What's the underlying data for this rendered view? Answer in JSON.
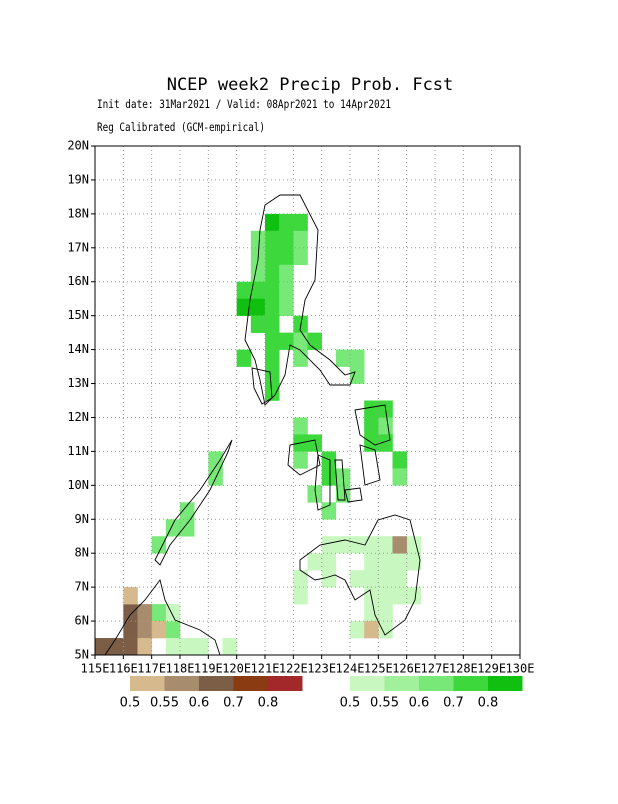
{
  "chart_data": {
    "type": "map",
    "title": "NCEP week2 Precip Prob. Fcst",
    "subtitle_lines": [
      "Init date: 31Mar2021 / Valid: 08Apr2021 to 14Apr2021",
      "Reg Calibrated (GCM-empirical)"
    ],
    "xlim": [
      115,
      130
    ],
    "ylim": [
      5,
      20
    ],
    "xticks": [
      {
        "value": 115,
        "label": "115E"
      },
      {
        "value": 116,
        "label": "116E"
      },
      {
        "value": 117,
        "label": "117E"
      },
      {
        "value": 118,
        "label": "118E"
      },
      {
        "value": 119,
        "label": "119E"
      },
      {
        "value": 120,
        "label": "120E"
      },
      {
        "value": 121,
        "label": "121E"
      },
      {
        "value": 122,
        "label": "122E"
      },
      {
        "value": 123,
        "label": "123E"
      },
      {
        "value": 124,
        "label": "124E"
      },
      {
        "value": 125,
        "label": "125E"
      },
      {
        "value": 126,
        "label": "126E"
      },
      {
        "value": 127,
        "label": "127E"
      },
      {
        "value": 128,
        "label": "128E"
      },
      {
        "value": 129,
        "label": "129E"
      },
      {
        "value": 130,
        "label": "130E"
      }
    ],
    "yticks": [
      {
        "value": 5,
        "label": "5N"
      },
      {
        "value": 6,
        "label": "6N"
      },
      {
        "value": 7,
        "label": "7N"
      },
      {
        "value": 8,
        "label": "8N"
      },
      {
        "value": 9,
        "label": "9N"
      },
      {
        "value": 10,
        "label": "10N"
      },
      {
        "value": 11,
        "label": "11N"
      },
      {
        "value": 12,
        "label": "12N"
      },
      {
        "value": 13,
        "label": "13N"
      },
      {
        "value": 14,
        "label": "14N"
      },
      {
        "value": 15,
        "label": "15N"
      },
      {
        "value": 16,
        "label": "16N"
      },
      {
        "value": 17,
        "label": "17N"
      },
      {
        "value": 18,
        "label": "18N"
      },
      {
        "value": 19,
        "label": "19N"
      },
      {
        "value": 20,
        "label": "20N"
      }
    ],
    "grid": true,
    "dry_colorbar": {
      "colors": [
        "#d6b98c",
        "#a88c6e",
        "#7c5e47",
        "#8a3b12",
        "#a3282a"
      ],
      "ticks": [
        0.5,
        0.55,
        0.6,
        0.7,
        0.8
      ]
    },
    "wet_colorbar": {
      "colors": [
        "#c8f8c0",
        "#a0f09c",
        "#78e878",
        "#3cd83c",
        "#10c010"
      ],
      "ticks": [
        0.5,
        0.55,
        0.6,
        0.7,
        0.8
      ]
    },
    "wet_cells": [
      [
        121,
        17.5,
        0.8
      ],
      [
        121.5,
        17.5,
        0.7
      ],
      [
        122,
        17.5,
        0.7
      ],
      [
        121,
        17,
        0.7
      ],
      [
        121.5,
        17,
        0.7
      ],
      [
        120.5,
        17,
        0.6
      ],
      [
        122,
        17,
        0.6
      ],
      [
        121,
        16.5,
        0.7
      ],
      [
        121.5,
        16.5,
        0.7
      ],
      [
        120.5,
        16.5,
        0.6
      ],
      [
        122,
        16.5,
        0.6
      ],
      [
        121,
        16,
        0.7
      ],
      [
        121.5,
        16,
        0.6
      ],
      [
        120.5,
        16,
        0.6
      ],
      [
        120,
        15.5,
        0.7
      ],
      [
        120.5,
        15.5,
        0.7
      ],
      [
        121,
        15.5,
        0.7
      ],
      [
        121.5,
        15.5,
        0.6
      ],
      [
        120,
        15,
        0.8
      ],
      [
        120.5,
        15,
        0.8
      ],
      [
        121,
        15,
        0.7
      ],
      [
        121.5,
        15,
        0.6
      ],
      [
        120.5,
        14.5,
        0.7
      ],
      [
        121,
        14.5,
        0.7
      ],
      [
        122,
        14.5,
        0.7
      ],
      [
        121,
        14,
        0.7
      ],
      [
        121.5,
        14,
        0.7
      ],
      [
        122,
        14,
        0.6
      ],
      [
        122.5,
        14,
        0.7
      ],
      [
        120,
        13.5,
        0.7
      ],
      [
        121,
        13.5,
        0.7
      ],
      [
        122,
        13.5,
        0.6
      ],
      [
        121,
        13,
        0.7
      ],
      [
        121,
        12.5,
        0.7
      ],
      [
        123.5,
        13.5,
        0.6
      ],
      [
        124,
        13,
        0.6
      ],
      [
        124,
        13.5,
        0.6
      ],
      [
        122,
        11.5,
        0.6
      ],
      [
        122,
        11,
        0.7
      ],
      [
        122.5,
        11,
        0.7
      ],
      [
        122,
        10.5,
        0.6
      ],
      [
        123,
        10.5,
        0.7
      ],
      [
        123,
        10,
        0.7
      ],
      [
        122.5,
        9.5,
        0.6
      ],
      [
        123.5,
        9.5,
        0.6
      ],
      [
        123,
        9,
        0.6
      ],
      [
        123.5,
        10,
        0.6
      ],
      [
        124.5,
        12,
        0.7
      ],
      [
        125,
        12,
        0.7
      ],
      [
        124.5,
        11.5,
        0.7
      ],
      [
        125,
        11.5,
        0.6
      ],
      [
        124.5,
        11,
        0.7
      ],
      [
        125,
        11,
        0.7
      ],
      [
        125.5,
        10.5,
        0.7
      ],
      [
        125.5,
        10,
        0.6
      ],
      [
        118,
        9,
        0.6
      ],
      [
        117.5,
        8.5,
        0.6
      ],
      [
        118,
        8.5,
        0.6
      ],
      [
        117,
        8,
        0.6
      ],
      [
        119,
        10,
        0.6
      ],
      [
        119,
        10.5,
        0.6
      ],
      [
        122.5,
        7.5,
        0.5
      ],
      [
        123,
        7.5,
        0.5
      ],
      [
        123,
        8,
        0.5
      ],
      [
        123.5,
        8,
        0.5
      ],
      [
        124,
        8,
        0.5
      ],
      [
        124.5,
        8,
        0.5
      ],
      [
        125,
        8,
        0.5
      ],
      [
        126,
        8,
        0.5
      ],
      [
        126,
        7.5,
        0.5
      ],
      [
        125.5,
        7.5,
        0.5
      ],
      [
        125,
        7.5,
        0.5
      ],
      [
        124.5,
        7.5,
        0.5
      ],
      [
        124,
        7,
        0.5
      ],
      [
        123,
        7,
        0.5
      ],
      [
        122,
        7,
        0.5
      ],
      [
        122,
        6.5,
        0.5
      ],
      [
        124.5,
        6.5,
        0.5
      ],
      [
        125,
        6.5,
        0.5
      ],
      [
        125.5,
        6.5,
        0.5
      ],
      [
        126,
        6.5,
        0.5
      ],
      [
        124.5,
        6,
        0.5
      ],
      [
        125,
        6,
        0.5
      ],
      [
        125,
        5.5,
        0.5
      ],
      [
        124,
        5.5,
        0.5
      ],
      [
        125.5,
        7,
        0.5
      ],
      [
        125,
        7,
        0.5
      ],
      [
        124.5,
        7,
        0.5
      ],
      [
        117,
        6,
        0.6
      ],
      [
        117.5,
        5.5,
        0.6
      ],
      [
        117.5,
        5,
        0.5
      ],
      [
        118,
        5,
        0.5
      ],
      [
        118.5,
        5,
        0.5
      ],
      [
        117.5,
        6,
        0.5
      ],
      [
        119.5,
        5,
        0.5
      ]
    ],
    "dry_cells": [
      [
        125.5,
        8,
        0.55
      ],
      [
        124.5,
        5.5,
        0.5
      ],
      [
        115.5,
        5,
        0.6
      ],
      [
        116,
        5,
        0.6
      ],
      [
        116,
        5.5,
        0.6
      ],
      [
        116,
        6,
        0.6
      ],
      [
        116.5,
        6,
        0.55
      ],
      [
        116.5,
        5.5,
        0.55
      ],
      [
        116.5,
        5,
        0.5
      ],
      [
        116,
        6.5,
        0.5
      ],
      [
        117,
        5.5,
        0.5
      ],
      [
        115,
        5,
        0.6
      ]
    ]
  }
}
